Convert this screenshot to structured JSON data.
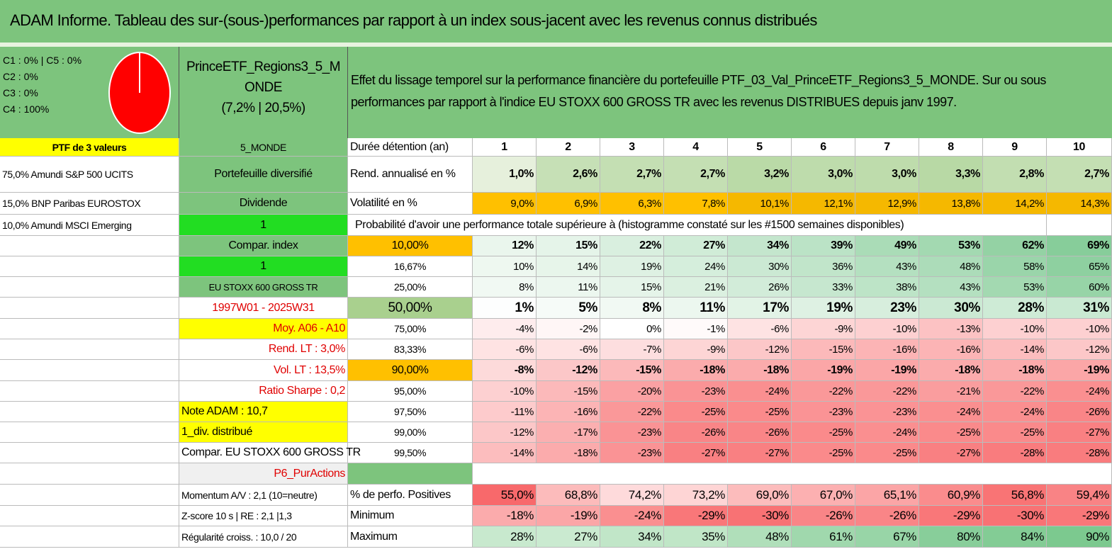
{
  "title": "ADAM Informe. Tableau des sur-(sous-)performances par rapport à un index sous-jacent avec les revenus connus distribués",
  "pie": {
    "legend": [
      "C1 : 0% | C5 : 0%",
      "C2 : 0%",
      "C3 : 0%",
      "C4 : 100%"
    ]
  },
  "fund": {
    "name": "PrinceETF_Regions3_5_MONDE",
    "stats": "(7,2% | 20,5%)"
  },
  "description": "Effet du lissage temporel sur la performance financière du portefeuille PTF_03_Val_PrinceETF_Regions3_5_MONDE. Sur ou sous performances par rapport à l'indice EU STOXX 600 GROSS TR avec les revenus DISTRIBUES depuis janv 1997.",
  "table": {
    "rows": [
      [
        "PTF de 3 valeurs",
        "5_MONDE",
        "Durée détention (an)",
        "1",
        "2",
        "3",
        "4",
        "5",
        "6",
        "7",
        "8",
        "9",
        "10"
      ],
      [
        "75,0% Amundi S&P 500 UCITS",
        "Portefeuille diversifié",
        "Rend. annualisé en %",
        "1,0%",
        "2,6%",
        "2,7%",
        "2,7%",
        "3,2%",
        "3,0%",
        "3,0%",
        "3,3%",
        "2,8%",
        "2,7%"
      ],
      [
        "15,0% BNP Paribas EUROSTOX",
        "Dividende",
        "Volatilité en %",
        "9,0%",
        "6,9%",
        "6,3%",
        "7,8%",
        "10,1%",
        "12,1%",
        "12,9%",
        "13,8%",
        "14,2%",
        "14,3%"
      ],
      [
        "10,0% Amundi MSCI Emerging",
        "1",
        "Probabilité d'avoir une performance totale supérieure à (histogramme constaté sur les #1500 semaines disponibles)"
      ],
      [
        null,
        "Compar. index",
        "10,00%",
        "12%",
        "15%",
        "22%",
        "27%",
        "34%",
        "39%",
        "49%",
        "53%",
        "62%",
        "69%"
      ],
      [
        null,
        "1",
        "16,67%",
        "10%",
        "14%",
        "19%",
        "24%",
        "30%",
        "36%",
        "43%",
        "48%",
        "58%",
        "65%"
      ],
      [
        null,
        "EU STOXX 600 GROSS TR",
        "25,00%",
        "8%",
        "11%",
        "15%",
        "21%",
        "26%",
        "33%",
        "38%",
        "43%",
        "53%",
        "60%"
      ],
      [
        null,
        "1997W01 - 2025W31",
        "50,00%",
        "1%",
        "5%",
        "8%",
        "11%",
        "17%",
        "19%",
        "23%",
        "30%",
        "28%",
        "31%"
      ],
      [
        null,
        "Moy. A06 - A10",
        "75,00%",
        "-4%",
        "-2%",
        "0%",
        "-1%",
        "-6%",
        "-9%",
        "-10%",
        "-13%",
        "-10%",
        "-10%"
      ],
      [
        null,
        "Rend. LT : 3,0%",
        "83,33%",
        "-6%",
        "-6%",
        "-7%",
        "-9%",
        "-12%",
        "-15%",
        "-16%",
        "-16%",
        "-14%",
        "-12%"
      ],
      [
        null,
        "Vol. LT : 13,5%",
        "90,00%",
        "-8%",
        "-12%",
        "-15%",
        "-18%",
        "-18%",
        "-19%",
        "-19%",
        "-18%",
        "-18%",
        "-19%"
      ],
      [
        null,
        "Ratio Sharpe : 0,2",
        "95,00%",
        "-10%",
        "-15%",
        "-20%",
        "-23%",
        "-24%",
        "-22%",
        "-22%",
        "-21%",
        "-22%",
        "-24%"
      ],
      [
        null,
        "Note ADAM : 10,7",
        "97,50%",
        "-11%",
        "-16%",
        "-22%",
        "-25%",
        "-25%",
        "-23%",
        "-23%",
        "-24%",
        "-24%",
        "-26%"
      ],
      [
        null,
        "1_div. distribué",
        "99,00%",
        "-12%",
        "-17%",
        "-23%",
        "-26%",
        "-26%",
        "-25%",
        "-24%",
        "-25%",
        "-25%",
        "-27%"
      ],
      [
        null,
        "Compar. EU STOXX 600 GROSS TR",
        "99,50%",
        "-14%",
        "-18%",
        "-23%",
        "-27%",
        "-27%",
        "-25%",
        "-25%",
        "-27%",
        "-28%",
        "-28%"
      ],
      [
        null,
        "P6_PurActions",
        null
      ],
      [
        null,
        "Momentum A/V : 2,1 (10=neutre)",
        "% de perfo. Positives",
        "55,0%",
        "68,8%",
        "74,2%",
        "73,2%",
        "69,0%",
        "67,0%",
        "65,1%",
        "60,9%",
        "56,8%",
        "59,4%"
      ],
      [
        null,
        "Z-score 10 s | RE : 2,1 |1,3",
        "Minimum",
        "-18%",
        "-19%",
        "-24%",
        "-29%",
        "-30%",
        "-26%",
        "-26%",
        "-29%",
        "-30%",
        "-29%"
      ],
      [
        null,
        "Régularité croiss. : 10,0 / 20",
        "Maximum",
        "28%",
        "27%",
        "34%",
        "35%",
        "48%",
        "61%",
        "67%",
        "80%",
        "84%",
        "90%"
      ]
    ]
  }
}
